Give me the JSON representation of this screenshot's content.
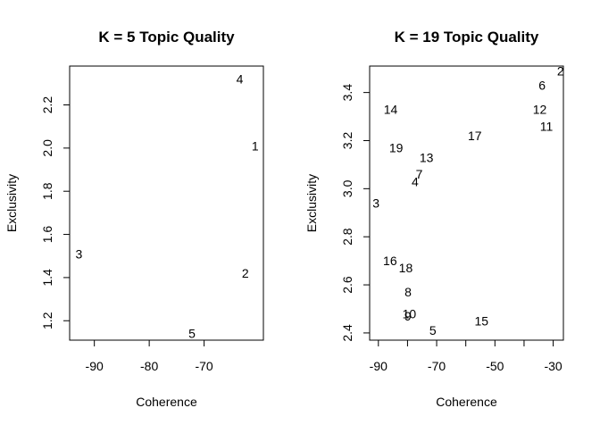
{
  "chart_data": [
    {
      "type": "scatter",
      "title": "K = 5 Topic Quality",
      "xlabel": "Coherence",
      "ylabel": "Exclusivity",
      "xlim": [
        -94.5,
        -59.2
      ],
      "ylim": [
        1.11,
        2.38
      ],
      "xticks": [
        -90,
        -80,
        -70
      ],
      "yticks": [
        1.2,
        1.4,
        1.6,
        1.8,
        2.0,
        2.2
      ],
      "xtick_labels": [
        "-90",
        "-80",
        "-70"
      ],
      "ytick_labels": [
        "1.2",
        "1.4",
        "1.6",
        "1.8",
        "2.0",
        "2.2"
      ],
      "points": [
        {
          "label": "1",
          "x": -60.7,
          "y": 2.01
        },
        {
          "label": "2",
          "x": -62.5,
          "y": 1.42
        },
        {
          "label": "3",
          "x": -92.8,
          "y": 1.51
        },
        {
          "label": "4",
          "x": -63.5,
          "y": 2.32
        },
        {
          "label": "5",
          "x": -72.2,
          "y": 1.14
        }
      ]
    },
    {
      "type": "scatter",
      "title": "K = 19 Topic Quality",
      "xlabel": "Coherence",
      "ylabel": "Exclusivity",
      "xlim": [
        -93,
        -26.5
      ],
      "ylim": [
        2.37,
        3.51
      ],
      "xticks": [
        -90,
        -70,
        -50,
        -30
      ],
      "xticks_minor": [
        -80,
        -60,
        -40
      ],
      "yticks": [
        2.4,
        2.6,
        2.8,
        3.0,
        3.2,
        3.4
      ],
      "xtick_labels": [
        "-90",
        "-70",
        "-50",
        "-30"
      ],
      "ytick_labels": [
        "2.4",
        "2.6",
        "2.8",
        "3.0",
        "3.2",
        "3.4"
      ],
      "points": [
        {
          "label": "2",
          "x": -27.5,
          "y": 3.49
        },
        {
          "label": "3",
          "x": -90.8,
          "y": 2.94
        },
        {
          "label": "4",
          "x": -77.4,
          "y": 3.03
        },
        {
          "label": "5",
          "x": -71.3,
          "y": 2.41
        },
        {
          "label": "6",
          "x": -33.8,
          "y": 3.43
        },
        {
          "label": "7",
          "x": -76.0,
          "y": 3.06
        },
        {
          "label": "8",
          "x": -79.8,
          "y": 2.57
        },
        {
          "label": "9",
          "x": -79.9,
          "y": 2.47
        },
        {
          "label": "10",
          "x": -79.4,
          "y": 2.48
        },
        {
          "label": "11",
          "x": -32.3,
          "y": 3.26
        },
        {
          "label": "12",
          "x": -34.6,
          "y": 3.33
        },
        {
          "label": "13",
          "x": -73.5,
          "y": 3.13
        },
        {
          "label": "14",
          "x": -85.8,
          "y": 3.33
        },
        {
          "label": "15",
          "x": -54.6,
          "y": 2.45
        },
        {
          "label": "16",
          "x": -86.0,
          "y": 2.7
        },
        {
          "label": "17",
          "x": -56.9,
          "y": 3.22
        },
        {
          "label": "18",
          "x": -80.6,
          "y": 2.67
        },
        {
          "label": "19",
          "x": -83.9,
          "y": 3.17
        }
      ]
    }
  ]
}
